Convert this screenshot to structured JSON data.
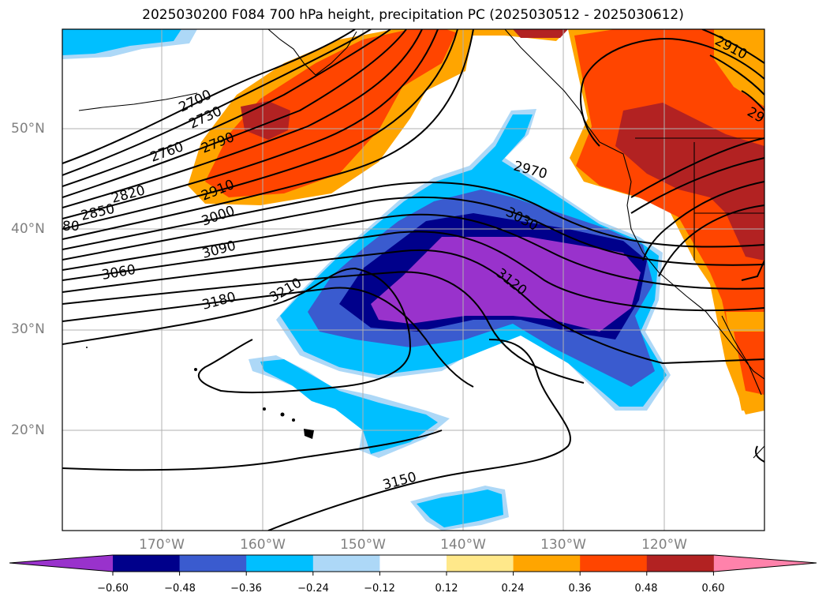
{
  "title": "2025030200 F084 700 hPa height, precipitation PC (2025030512 - 2025030612)",
  "lat_labels": [
    "50°N",
    "40°N",
    "30°N",
    "20°N"
  ],
  "lon_labels": [
    "170°W",
    "160°W",
    "150°W",
    "140°W",
    "130°W",
    "120°W"
  ],
  "contour_labels": [
    "2700",
    "2730",
    "2760",
    "2790",
    "2820",
    "2850",
    "2910",
    "3000",
    "3060",
    "3090",
    "3180",
    "3210",
    "3120",
    "3030",
    "2970",
    "2910",
    "3150",
    "80",
    "29"
  ],
  "colorbar": {
    "ticks": [
      "−0.60",
      "−0.48",
      "−0.36",
      "−0.24",
      "−0.12",
      "0.12",
      "0.24",
      "0.36",
      "0.48",
      "0.60"
    ],
    "colors": [
      "#9932cc",
      "#00008b",
      "#3a5bcf",
      "#00bfff",
      "#add8f7",
      "#ffffff",
      "#ffe88a",
      "#ffa500",
      "#ff4500",
      "#b22222",
      "#ff82ab"
    ]
  }
}
